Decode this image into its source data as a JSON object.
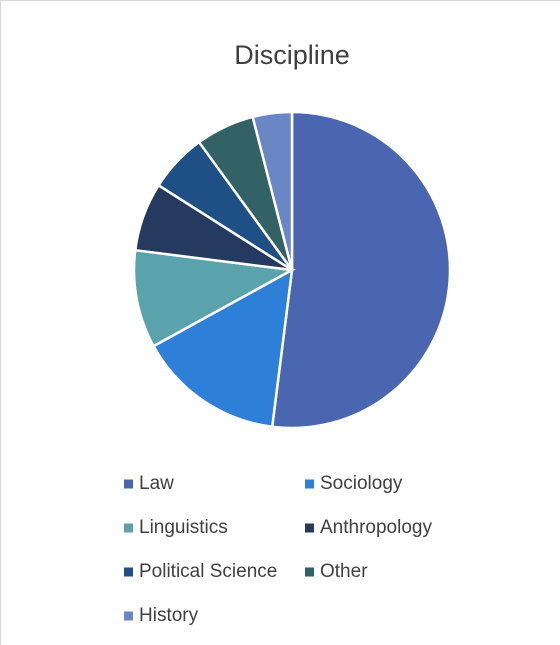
{
  "chart_data": {
    "type": "pie",
    "title": "Discipline",
    "categories": [
      "Law",
      "Sociology",
      "Linguistics",
      "Anthropology",
      "Political Science",
      "Other",
      "History"
    ],
    "values": [
      52,
      15,
      10,
      7,
      6,
      6,
      4
    ],
    "colors": [
      "#4a66b0",
      "#2e7fd8",
      "#5aa3ad",
      "#253a5e",
      "#1e4f85",
      "#336266",
      "#6b86c4"
    ],
    "legend": "bottom"
  }
}
